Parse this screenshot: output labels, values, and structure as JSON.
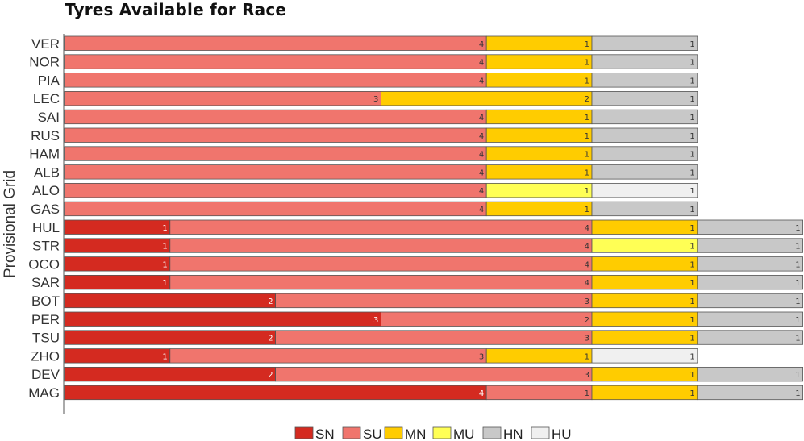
{
  "chart_data": {
    "type": "bar",
    "orientation": "horizontal",
    "stacked": true,
    "title": "Tyres Available for Race",
    "ylabel": "Provisional Grid",
    "categories": [
      "VER",
      "NOR",
      "PIA",
      "LEC",
      "SAI",
      "RUS",
      "HAM",
      "ALB",
      "ALO",
      "GAS",
      "HUL",
      "STR",
      "OCO",
      "SAR",
      "BOT",
      "PER",
      "TSU",
      "ZHO",
      "DEV",
      "MAG"
    ],
    "series": [
      {
        "name": "SN",
        "color": "#d42a20",
        "values": [
          0,
          0,
          0,
          0,
          0,
          0,
          0,
          0,
          0,
          0,
          1,
          1,
          1,
          1,
          2,
          3,
          2,
          1,
          2,
          4
        ]
      },
      {
        "name": "SU",
        "color": "#f0756d",
        "values": [
          4,
          4,
          4,
          3,
          4,
          4,
          4,
          4,
          4,
          4,
          4,
          4,
          4,
          4,
          3,
          2,
          3,
          3,
          3,
          1
        ]
      },
      {
        "name": "MN",
        "color": "#ffcc00",
        "values": [
          1,
          1,
          1,
          2,
          1,
          1,
          1,
          1,
          0,
          1,
          1,
          0,
          1,
          1,
          1,
          1,
          1,
          1,
          1,
          1
        ]
      },
      {
        "name": "MU",
        "color": "#ffff55",
        "values": [
          0,
          0,
          0,
          0,
          0,
          0,
          0,
          0,
          1,
          0,
          0,
          1,
          0,
          0,
          0,
          0,
          0,
          0,
          0,
          0
        ]
      },
      {
        "name": "HN",
        "color": "#c8c8c8",
        "values": [
          1,
          1,
          1,
          1,
          1,
          1,
          1,
          1,
          0,
          1,
          1,
          1,
          1,
          1,
          1,
          1,
          1,
          0,
          1,
          1
        ]
      },
      {
        "name": "HU",
        "color": "#f0f0f0",
        "values": [
          0,
          0,
          0,
          0,
          0,
          0,
          0,
          0,
          1,
          0,
          0,
          0,
          0,
          0,
          0,
          0,
          0,
          1,
          0,
          0
        ]
      }
    ],
    "xlim": [
      0,
      7
    ],
    "legend_position": "bottom-center",
    "grid": false
  }
}
